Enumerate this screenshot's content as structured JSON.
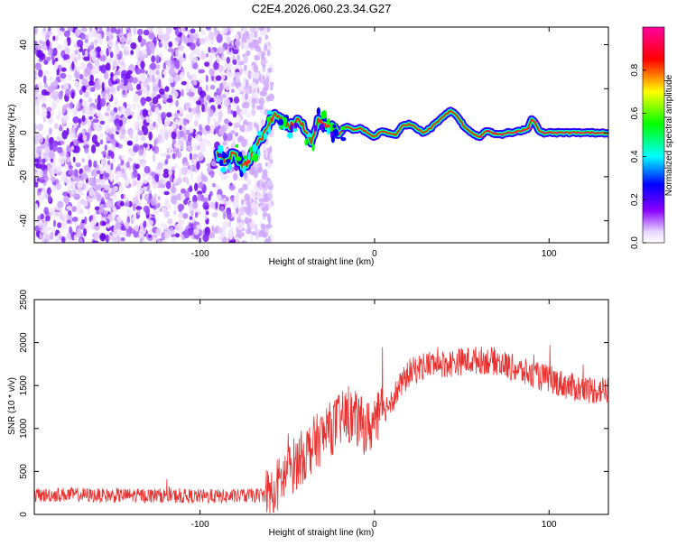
{
  "chart_data": [
    {
      "type": "heatmap",
      "title": "C2E4.2026.060.23.34.G27",
      "xlabel": "Height of straight line (km)",
      "ylabel": "Frequency (Hz)",
      "xlim": [
        -195,
        134
      ],
      "ylim": [
        -50,
        48
      ],
      "xticks": [
        -100,
        0,
        100
      ],
      "yticks": [
        -40,
        -20,
        0,
        20,
        40
      ],
      "colorbar": {
        "label": "Normalized spectral amplitude",
        "range": [
          0,
          1
        ],
        "ticks": [
          0.0,
          0.2,
          0.4,
          0.6,
          0.8
        ],
        "colors": [
          "#ffffff",
          "#8a00ff",
          "#0000ff",
          "#00ffff",
          "#00ff00",
          "#ffff00",
          "#ff0000",
          "#ff00a0"
        ]
      },
      "noise_region_end_km": -63,
      "ridge": {
        "x": [
          -90,
          -85,
          -80,
          -76,
          -72,
          -68,
          -64,
          -60,
          -56,
          -52,
          -48,
          -44,
          -40,
          -36,
          -32,
          -28,
          -24,
          -20,
          -16,
          -12,
          -8,
          -4,
          0,
          4,
          8,
          12,
          16,
          20,
          24,
          28,
          32,
          36,
          40,
          44,
          48,
          52,
          56,
          60,
          64,
          68,
          72,
          76,
          80,
          84,
          88,
          90,
          92,
          94,
          96,
          100,
          110,
          120,
          134
        ],
        "y": [
          -10,
          -13,
          -9,
          -16,
          -13,
          -6,
          -2,
          5,
          9,
          4,
          3,
          7,
          1,
          -4,
          6,
          4,
          2,
          0,
          3,
          1,
          2,
          0,
          -2,
          1,
          0,
          -1,
          3,
          4,
          2,
          0,
          2,
          5,
          8,
          10,
          7,
          2,
          0,
          -2,
          1,
          0,
          -1,
          0,
          0,
          1,
          2,
          6,
          5,
          1,
          0,
          0,
          0,
          0,
          0
        ]
      }
    },
    {
      "type": "line",
      "title": "",
      "xlabel": "Height of straight line (km)",
      "ylabel": "SNR (10 * v/v)",
      "xlim": [
        -195,
        134
      ],
      "ylim": [
        0,
        2500
      ],
      "xticks": [
        -100,
        0,
        100
      ],
      "yticks": [
        0,
        500,
        1000,
        1500,
        2000,
        2500
      ],
      "series": [
        {
          "name": "SNR",
          "color": "#e8302e",
          "x": [
            -195,
            -180,
            -170,
            -160,
            -150,
            -140,
            -130,
            -120,
            -110,
            -100,
            -90,
            -80,
            -70,
            -60,
            -55,
            -50,
            -45,
            -40,
            -35,
            -30,
            -25,
            -20,
            -15,
            -10,
            -5,
            0,
            5,
            10,
            15,
            20,
            25,
            30,
            40,
            50,
            60,
            70,
            80,
            90,
            100,
            110,
            120,
            134
          ],
          "y": [
            220,
            230,
            230,
            220,
            220,
            220,
            220,
            220,
            210,
            210,
            210,
            210,
            220,
            230,
            350,
            500,
            600,
            700,
            820,
            900,
            1000,
            1100,
            1150,
            1100,
            1000,
            1050,
            1200,
            1350,
            1500,
            1650,
            1700,
            1750,
            1750,
            1780,
            1800,
            1780,
            1700,
            1620,
            1580,
            1500,
            1450,
            1450
          ]
        }
      ]
    }
  ]
}
